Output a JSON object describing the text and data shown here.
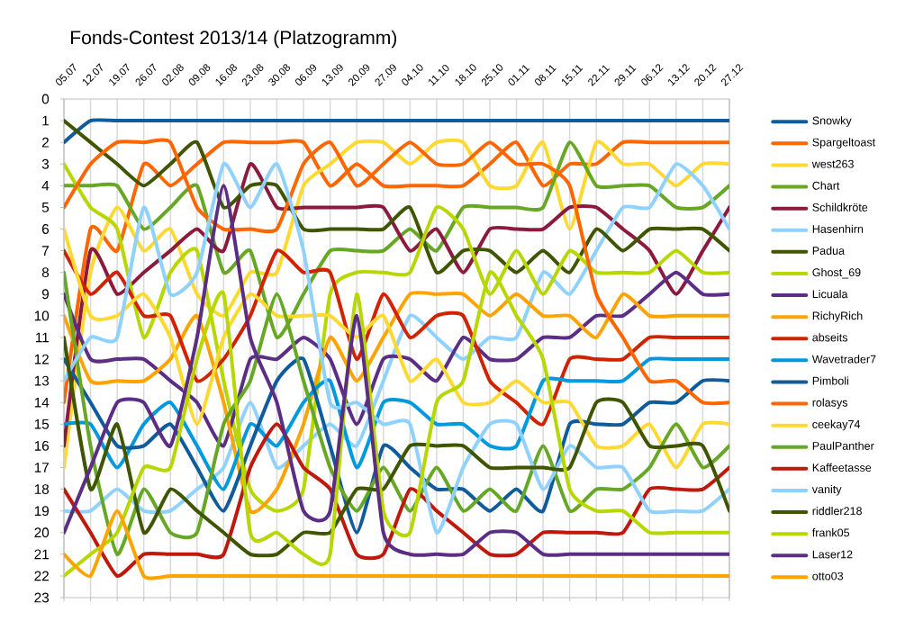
{
  "chart_data": {
    "type": "line",
    "title": "Fonds-Contest 2013/14 (Platzogramm)",
    "categories": [
      "05.07",
      "12.07",
      "19.07",
      "26.07",
      "02.08",
      "09.08",
      "16.08",
      "23.08",
      "30.08",
      "06.09",
      "13.09",
      "20.09",
      "27.09",
      "04.10",
      "11.10",
      "18.10",
      "25.10",
      "01.11",
      "08.11",
      "15.11",
      "22.11",
      "29.11",
      "06.12",
      "13.12",
      "20.12",
      "27.12"
    ],
    "ylim": [
      23,
      0
    ],
    "yticks": [
      0,
      1,
      2,
      3,
      4,
      5,
      6,
      7,
      8,
      9,
      10,
      11,
      12,
      13,
      14,
      15,
      16,
      17,
      18,
      19,
      20,
      21,
      22,
      23
    ],
    "grid": "x",
    "legend": "right",
    "series": [
      {
        "name": "Snowky",
        "color": "#0f5b9b",
        "values": [
          2,
          1,
          1,
          1,
          1,
          1,
          1,
          1,
          1,
          1,
          1,
          1,
          1,
          1,
          1,
          1,
          1,
          1,
          1,
          1,
          1,
          1,
          1,
          1,
          1,
          1
        ]
      },
      {
        "name": "Spargeltoast",
        "color": "#ff6600",
        "values": [
          14,
          6,
          7,
          3,
          4,
          3,
          2,
          2,
          2,
          2,
          4,
          3,
          4,
          4,
          4,
          4,
          3,
          2,
          4,
          3,
          3,
          2,
          2,
          2,
          2,
          2
        ]
      },
      {
        "name": "west263",
        "color": "#ffd932",
        "values": [
          17,
          8,
          5,
          7,
          6,
          9,
          10,
          8,
          8,
          4,
          3,
          2,
          2,
          3,
          2,
          2,
          4,
          4,
          2,
          6,
          2,
          3,
          3,
          4,
          3,
          3
        ]
      },
      {
        "name": "Chart",
        "color": "#66a825",
        "values": [
          4,
          4,
          4,
          6,
          5,
          4,
          8,
          7,
          11,
          9,
          7,
          7,
          7,
          6,
          7,
          5,
          5,
          5,
          5,
          2,
          4,
          4,
          4,
          5,
          5,
          4
        ]
      },
      {
        "name": "Schildkröte",
        "color": "#8c1a3c",
        "values": [
          16,
          7,
          9,
          8,
          7,
          6,
          7,
          3,
          5,
          5,
          5,
          5,
          5,
          7,
          6,
          8,
          6,
          6,
          6,
          5,
          5,
          6,
          7,
          9,
          7,
          5
        ]
      },
      {
        "name": "Hasenhirn",
        "color": "#8fd1ff",
        "values": [
          19,
          19,
          18,
          19,
          19,
          18,
          17,
          14,
          17,
          16,
          15,
          16,
          13,
          10,
          11,
          12,
          11,
          11,
          8,
          9,
          7,
          5,
          5,
          3,
          4,
          6
        ]
      },
      {
        "name": "Padua",
        "color": "#3f5500",
        "values": [
          1,
          2,
          3,
          4,
          3,
          2,
          5,
          4,
          4,
          6,
          6,
          6,
          6,
          5,
          8,
          7,
          7,
          8,
          7,
          8,
          6,
          7,
          6,
          6,
          6,
          7
        ]
      },
      {
        "name": "Ghost_69",
        "color": "#b8d600",
        "values": [
          3,
          5,
          6,
          11,
          8,
          7,
          13,
          18,
          19,
          18,
          9,
          8,
          8,
          8,
          5,
          6,
          9,
          7,
          9,
          7,
          8,
          8,
          8,
          7,
          8,
          8
        ]
      },
      {
        "name": "Licuala",
        "color": "#5c2d84",
        "values": [
          9,
          12,
          12,
          12,
          13,
          14,
          16,
          12,
          12,
          11,
          12,
          15,
          12,
          12,
          13,
          11,
          12,
          12,
          11,
          11,
          10,
          10,
          9,
          8,
          9,
          9
        ]
      },
      {
        "name": "RichyRich",
        "color": "#ffa300",
        "values": [
          10,
          13,
          13,
          13,
          12,
          10,
          14,
          19,
          18,
          15,
          11,
          13,
          11,
          9,
          9,
          9,
          10,
          9,
          10,
          10,
          11,
          9,
          10,
          10,
          10,
          10
        ]
      },
      {
        "name": "abseits",
        "color": "#d22300",
        "values": [
          7,
          9,
          8,
          10,
          10,
          13,
          12,
          10,
          7,
          8,
          8,
          12,
          9,
          11,
          10,
          10,
          13,
          14,
          15,
          12,
          12,
          12,
          11,
          11,
          11,
          11
        ]
      },
      {
        "name": "Wavetrader7",
        "color": "#0099dd",
        "values": [
          15,
          15,
          17,
          15,
          14,
          16,
          18,
          15,
          16,
          14,
          13,
          17,
          14,
          14,
          15,
          15,
          16,
          16,
          13,
          13,
          13,
          13,
          12,
          12,
          12,
          12
        ]
      },
      {
        "name": "Pimboli",
        "color": "#0f5b9b",
        "values": [
          12,
          14,
          16,
          16,
          15,
          17,
          19,
          16,
          13,
          12,
          16,
          20,
          16,
          17,
          18,
          18,
          19,
          18,
          19,
          15,
          15,
          15,
          14,
          14,
          13,
          13
        ]
      },
      {
        "name": "rolasys",
        "color": "#ff6600",
        "values": [
          5,
          3,
          2,
          2,
          2,
          5,
          6,
          6,
          6,
          3,
          2,
          4,
          3,
          2,
          3,
          3,
          2,
          3,
          3,
          4,
          9,
          11,
          13,
          13,
          14,
          14
        ]
      },
      {
        "name": "ceekay74",
        "color": "#ffd932",
        "values": [
          6,
          10,
          10,
          9,
          11,
          15,
          11,
          9,
          10,
          10,
          10,
          11,
          10,
          13,
          12,
          14,
          14,
          13,
          14,
          14,
          16,
          16,
          15,
          17,
          15,
          15
        ]
      },
      {
        "name": "PaulPanther",
        "color": "#66a825",
        "values": [
          8,
          16,
          21,
          18,
          20,
          20,
          15,
          13,
          9,
          13,
          17,
          19,
          17,
          19,
          17,
          19,
          18,
          19,
          16,
          19,
          18,
          18,
          17,
          15,
          17,
          16
        ]
      },
      {
        "name": "Kaffeetasse",
        "color": "#bf180c",
        "values": [
          18,
          20,
          22,
          21,
          21,
          21,
          21,
          17,
          15,
          17,
          18,
          21,
          21,
          18,
          19,
          20,
          21,
          21,
          20,
          20,
          20,
          20,
          18,
          18,
          18,
          17
        ]
      },
      {
        "name": "vanity",
        "color": "#8fd1ff",
        "values": [
          13,
          11,
          11,
          5,
          9,
          8,
          3,
          5,
          3,
          7,
          14,
          14,
          15,
          15,
          20,
          17,
          15,
          15,
          18,
          16,
          17,
          17,
          19,
          19,
          19,
          18
        ]
      },
      {
        "name": "riddler218",
        "color": "#3f5500",
        "values": [
          11,
          18,
          15,
          20,
          18,
          19,
          20,
          21,
          21,
          20,
          20,
          18,
          18,
          16,
          16,
          16,
          17,
          17,
          17,
          17,
          14,
          14,
          16,
          16,
          16,
          19
        ]
      },
      {
        "name": "frank05",
        "color": "#b8d600",
        "values": [
          22,
          21,
          20,
          17,
          17,
          12,
          9,
          20,
          20,
          21,
          21,
          9,
          19,
          20,
          14,
          13,
          8,
          10,
          12,
          18,
          19,
          19,
          20,
          20,
          20,
          20
        ]
      },
      {
        "name": "Laser12",
        "color": "#5c2d84",
        "values": [
          20,
          17,
          14,
          14,
          16,
          11,
          4,
          11,
          14,
          19,
          19,
          10,
          20,
          21,
          21,
          21,
          20,
          20,
          21,
          21,
          21,
          21,
          21,
          21,
          21,
          21
        ]
      },
      {
        "name": "otto03",
        "color": "#ffa300",
        "values": [
          21,
          22,
          19,
          22,
          22,
          22,
          22,
          22,
          22,
          22,
          22,
          22,
          22,
          22,
          22,
          22,
          22,
          22,
          22,
          22,
          22,
          22,
          22,
          22,
          22,
          22
        ]
      }
    ]
  }
}
